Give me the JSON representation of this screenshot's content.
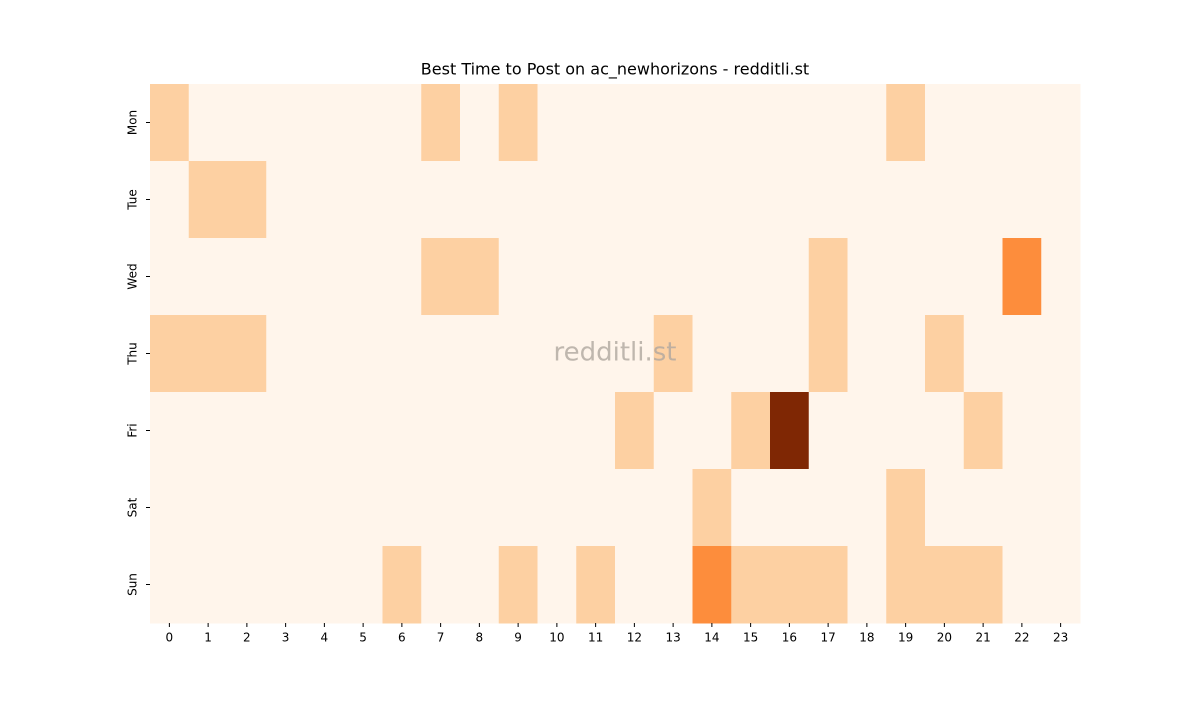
{
  "chart_data": {
    "type": "heatmap",
    "title": "Best Time to Post on ac_newhorizons - redditli.st",
    "watermark": "redditli.st",
    "x": [
      0,
      1,
      2,
      3,
      4,
      5,
      6,
      7,
      8,
      9,
      10,
      11,
      12,
      13,
      14,
      15,
      16,
      17,
      18,
      19,
      20,
      21,
      22,
      23
    ],
    "categories": [
      "Mon",
      "Tue",
      "Wed",
      "Thu",
      "Fri",
      "Sat",
      "Sun"
    ],
    "values": [
      [
        1,
        0,
        0,
        0,
        0,
        0,
        0,
        1,
        0,
        1,
        0,
        0,
        0,
        0,
        0,
        0,
        0,
        0,
        0,
        1,
        0,
        0,
        0,
        0
      ],
      [
        0,
        1,
        1,
        0,
        0,
        0,
        0,
        0,
        0,
        0,
        0,
        0,
        0,
        0,
        0,
        0,
        0,
        0,
        0,
        0,
        0,
        0,
        0,
        0
      ],
      [
        0,
        0,
        0,
        0,
        0,
        0,
        0,
        1,
        1,
        0,
        0,
        0,
        0,
        0,
        0,
        0,
        0,
        1,
        0,
        0,
        0,
        0,
        2,
        0
      ],
      [
        1,
        1,
        1,
        0,
        0,
        0,
        0,
        0,
        0,
        0,
        0,
        0,
        0,
        1,
        0,
        0,
        0,
        1,
        0,
        0,
        1,
        0,
        0,
        0
      ],
      [
        0,
        0,
        0,
        0,
        0,
        0,
        0,
        0,
        0,
        0,
        0,
        0,
        1,
        0,
        0,
        1,
        4,
        0,
        0,
        0,
        0,
        1,
        0,
        0
      ],
      [
        0,
        0,
        0,
        0,
        0,
        0,
        0,
        0,
        0,
        0,
        0,
        0,
        0,
        0,
        1,
        0,
        0,
        0,
        0,
        1,
        0,
        0,
        0,
        0
      ],
      [
        0,
        0,
        0,
        0,
        0,
        0,
        1,
        0,
        0,
        1,
        0,
        1,
        0,
        0,
        2,
        1,
        1,
        1,
        0,
        1,
        1,
        1,
        0,
        0
      ]
    ],
    "zlim": [
      0,
      4
    ],
    "colormap": [
      "#fff5eb",
      "#fee6ce",
      "#fdd0a2",
      "#fdae6b",
      "#fd8d3c",
      "#f16913",
      "#d94801",
      "#a63603",
      "#7f2704"
    ]
  }
}
